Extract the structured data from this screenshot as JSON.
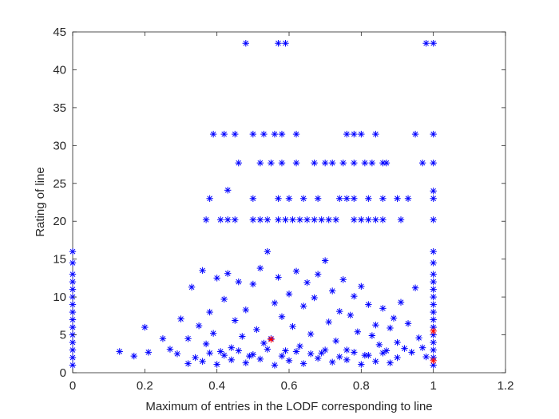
{
  "chart_data": {
    "type": "scatter",
    "title": "",
    "xlabel": "Maximum of entries in the LODF corresponding to line",
    "ylabel": "Rating of line",
    "xlim": [
      0,
      1.2
    ],
    "ylim": [
      0,
      45
    ],
    "xticks": [
      0,
      0.2,
      0.4,
      0.6,
      0.8,
      1,
      1.2
    ],
    "xtick_labels": [
      "0",
      "0.2",
      "0.4",
      "0.6",
      "0.8",
      "1",
      "1.2"
    ],
    "yticks": [
      0,
      5,
      10,
      15,
      20,
      25,
      30,
      35,
      40,
      45
    ],
    "ytick_labels": [
      "0",
      "5",
      "10",
      "15",
      "20",
      "25",
      "30",
      "35",
      "40",
      "45"
    ],
    "marker": "asterisk",
    "grid": false,
    "colors": {
      "primary": "#0000ff",
      "highlight": "#ff0000",
      "axes": "#262626"
    },
    "series": [
      {
        "color": "#0000ff",
        "points": [
          [
            0.48,
            43.5
          ],
          [
            0.57,
            43.5
          ],
          [
            0.59,
            43.5
          ],
          [
            0.98,
            43.5
          ],
          [
            1.0,
            43.5
          ],
          [
            0.39,
            31.5
          ],
          [
            0.42,
            31.5
          ],
          [
            0.45,
            31.5
          ],
          [
            0.5,
            31.5
          ],
          [
            0.53,
            31.5
          ],
          [
            0.56,
            31.5
          ],
          [
            0.58,
            31.5
          ],
          [
            0.62,
            31.5
          ],
          [
            0.76,
            31.5
          ],
          [
            0.78,
            31.5
          ],
          [
            0.8,
            31.5
          ],
          [
            0.84,
            31.5
          ],
          [
            0.95,
            31.5
          ],
          [
            1.0,
            31.5
          ],
          [
            0.46,
            27.7
          ],
          [
            0.52,
            27.7
          ],
          [
            0.55,
            27.7
          ],
          [
            0.58,
            27.7
          ],
          [
            0.62,
            27.7
          ],
          [
            0.67,
            27.7
          ],
          [
            0.7,
            27.7
          ],
          [
            0.72,
            27.7
          ],
          [
            0.75,
            27.7
          ],
          [
            0.78,
            27.7
          ],
          [
            0.81,
            27.7
          ],
          [
            0.83,
            27.7
          ],
          [
            0.86,
            27.7
          ],
          [
            0.87,
            27.7
          ],
          [
            0.97,
            27.7
          ],
          [
            1.0,
            27.7
          ],
          [
            0.38,
            23.0
          ],
          [
            0.43,
            24.1
          ],
          [
            0.5,
            23.0
          ],
          [
            0.57,
            23.0
          ],
          [
            0.6,
            23.0
          ],
          [
            0.64,
            23.0
          ],
          [
            0.68,
            23.0
          ],
          [
            0.74,
            23.0
          ],
          [
            0.76,
            23.0
          ],
          [
            0.78,
            23.0
          ],
          [
            0.82,
            23.0
          ],
          [
            0.86,
            23.0
          ],
          [
            0.9,
            23.0
          ],
          [
            0.93,
            23.0
          ],
          [
            1.0,
            23.0
          ],
          [
            1.0,
            24.0
          ],
          [
            0.37,
            20.2
          ],
          [
            0.41,
            20.2
          ],
          [
            0.43,
            20.2
          ],
          [
            0.45,
            20.2
          ],
          [
            0.5,
            20.2
          ],
          [
            0.52,
            20.2
          ],
          [
            0.54,
            20.2
          ],
          [
            0.57,
            20.2
          ],
          [
            0.59,
            20.2
          ],
          [
            0.61,
            20.2
          ],
          [
            0.63,
            20.2
          ],
          [
            0.65,
            20.2
          ],
          [
            0.67,
            20.2
          ],
          [
            0.69,
            20.2
          ],
          [
            0.71,
            20.2
          ],
          [
            0.73,
            20.2
          ],
          [
            0.78,
            20.2
          ],
          [
            0.8,
            20.2
          ],
          [
            0.82,
            20.2
          ],
          [
            0.84,
            20.2
          ],
          [
            0.86,
            20.2
          ],
          [
            0.91,
            20.2
          ],
          [
            1.0,
            20.2
          ],
          [
            0.0,
            16.0
          ],
          [
            0.0,
            14.5
          ],
          [
            0.0,
            13.0
          ],
          [
            0.0,
            12.0
          ],
          [
            0.0,
            11.0
          ],
          [
            0.0,
            10.0
          ],
          [
            0.0,
            9.0
          ],
          [
            0.0,
            8.0
          ],
          [
            0.0,
            7.0
          ],
          [
            0.0,
            6.0
          ],
          [
            0.0,
            5.0
          ],
          [
            0.0,
            4.0
          ],
          [
            0.0,
            3.0
          ],
          [
            0.0,
            2.0
          ],
          [
            0.0,
            1.0
          ],
          [
            1.0,
            16.0
          ],
          [
            1.0,
            14.5
          ],
          [
            1.0,
            13.0
          ],
          [
            1.0,
            12.0
          ],
          [
            1.0,
            11.0
          ],
          [
            1.0,
            10.0
          ],
          [
            1.0,
            9.0
          ],
          [
            1.0,
            8.0
          ],
          [
            1.0,
            7.0
          ],
          [
            1.0,
            6.0
          ],
          [
            1.0,
            5.0
          ],
          [
            1.0,
            4.0
          ],
          [
            1.0,
            3.0
          ],
          [
            1.0,
            2.0
          ],
          [
            1.0,
            1.0
          ],
          [
            0.13,
            2.8
          ],
          [
            0.17,
            2.2
          ],
          [
            0.2,
            6.0
          ],
          [
            0.21,
            2.7
          ],
          [
            0.25,
            4.5
          ],
          [
            0.27,
            3.1
          ],
          [
            0.29,
            2.5
          ],
          [
            0.3,
            7.1
          ],
          [
            0.32,
            4.5
          ],
          [
            0.33,
            11.3
          ],
          [
            0.35,
            6.2
          ],
          [
            0.36,
            13.5
          ],
          [
            0.37,
            3.8
          ],
          [
            0.38,
            8.0
          ],
          [
            0.39,
            5.2
          ],
          [
            0.4,
            12.5
          ],
          [
            0.41,
            2.8
          ],
          [
            0.42,
            9.7
          ],
          [
            0.43,
            13.1
          ],
          [
            0.44,
            3.3
          ],
          [
            0.45,
            6.9
          ],
          [
            0.46,
            12.0
          ],
          [
            0.47,
            4.8
          ],
          [
            0.48,
            8.3
          ],
          [
            0.49,
            2.2
          ],
          [
            0.5,
            11.7
          ],
          [
            0.51,
            5.7
          ],
          [
            0.52,
            13.8
          ],
          [
            0.53,
            3.9
          ],
          [
            0.54,
            16.0
          ],
          [
            0.55,
            4.5
          ],
          [
            0.56,
            9.2
          ],
          [
            0.57,
            12.6
          ],
          [
            0.58,
            7.4
          ],
          [
            0.59,
            2.9
          ],
          [
            0.6,
            10.4
          ],
          [
            0.61,
            6.1
          ],
          [
            0.62,
            13.4
          ],
          [
            0.63,
            3.5
          ],
          [
            0.64,
            8.8
          ],
          [
            0.65,
            11.9
          ],
          [
            0.66,
            5.1
          ],
          [
            0.67,
            9.9
          ],
          [
            0.68,
            13.0
          ],
          [
            0.69,
            2.6
          ],
          [
            0.7,
            14.8
          ],
          [
            0.71,
            6.7
          ],
          [
            0.72,
            10.8
          ],
          [
            0.73,
            4.2
          ],
          [
            0.74,
            8.1
          ],
          [
            0.75,
            12.3
          ],
          [
            0.76,
            3.0
          ],
          [
            0.77,
            7.6
          ],
          [
            0.78,
            10.1
          ],
          [
            0.79,
            5.4
          ],
          [
            0.8,
            11.4
          ],
          [
            0.81,
            2.3
          ],
          [
            0.82,
            9.0
          ],
          [
            0.83,
            4.9
          ],
          [
            0.84,
            6.3
          ],
          [
            0.85,
            3.7
          ],
          [
            0.86,
            8.5
          ],
          [
            0.87,
            2.9
          ],
          [
            0.88,
            5.9
          ],
          [
            0.89,
            7.2
          ],
          [
            0.9,
            4.0
          ],
          [
            0.91,
            9.3
          ],
          [
            0.92,
            3.2
          ],
          [
            0.93,
            6.5
          ],
          [
            0.94,
            2.7
          ],
          [
            0.95,
            11.2
          ],
          [
            0.96,
            4.6
          ],
          [
            0.97,
            3.3
          ],
          [
            0.98,
            2.1
          ],
          [
            0.32,
            1.2
          ],
          [
            0.34,
            2.0
          ],
          [
            0.36,
            1.5
          ],
          [
            0.38,
            2.6
          ],
          [
            0.4,
            1.1
          ],
          [
            0.42,
            2.3
          ],
          [
            0.44,
            1.7
          ],
          [
            0.46,
            2.9
          ],
          [
            0.48,
            1.3
          ],
          [
            0.5,
            2.4
          ],
          [
            0.52,
            1.8
          ],
          [
            0.54,
            3.1
          ],
          [
            0.56,
            1.0
          ],
          [
            0.58,
            2.2
          ],
          [
            0.6,
            1.6
          ],
          [
            0.62,
            2.8
          ],
          [
            0.64,
            1.2
          ],
          [
            0.66,
            2.5
          ],
          [
            0.68,
            1.9
          ],
          [
            0.7,
            3.0
          ],
          [
            0.72,
            1.4
          ],
          [
            0.74,
            2.1
          ],
          [
            0.76,
            1.7
          ],
          [
            0.78,
            2.7
          ],
          [
            0.8,
            1.1
          ],
          [
            0.82,
            2.3
          ],
          [
            0.84,
            1.5
          ],
          [
            0.86,
            2.6
          ],
          [
            0.88,
            1.3
          ],
          [
            0.9,
            2.0
          ]
        ]
      },
      {
        "color": "#ff0000",
        "points": [
          [
            0.55,
            4.4
          ],
          [
            1.0,
            5.5
          ],
          [
            1.0,
            1.6
          ]
        ]
      }
    ]
  }
}
